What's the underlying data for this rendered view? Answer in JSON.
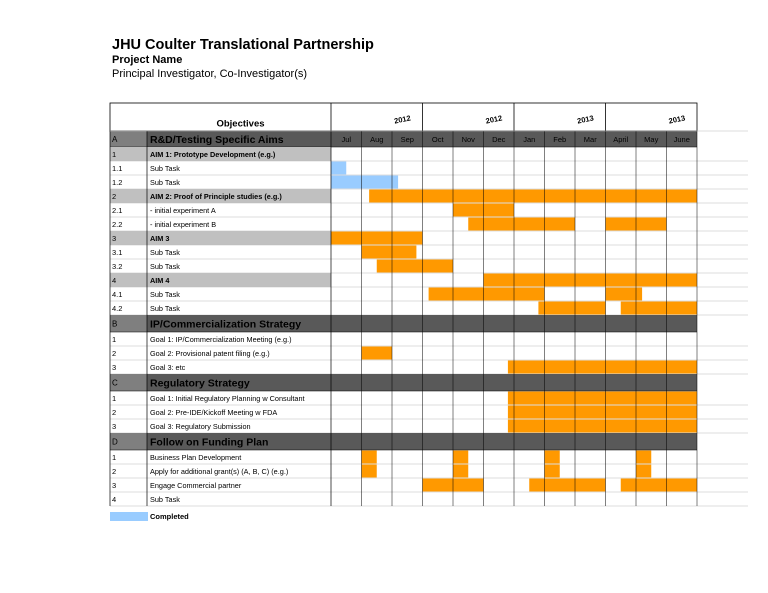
{
  "header": {
    "title": "JHU Coulter Translational Partnership",
    "project": "Project Name",
    "investigators": "Principal Investigator, Co-Investigator(s)"
  },
  "table": {
    "objectives_label": "Objectives",
    "years": [
      "2012",
      "2012",
      "2013",
      "2013"
    ],
    "months": [
      "Jul",
      "Aug",
      "Sep",
      "Oct",
      "Nov",
      "Dec",
      "Jan",
      "Feb",
      "Mar",
      "April",
      "May",
      "June"
    ],
    "rows": [
      {
        "id": "A",
        "label": "R&D/Testing Specific Aims",
        "kind": "section"
      },
      {
        "id": "1",
        "label": "AIM 1: Prototype Development (e.g.)",
        "kind": "aim"
      },
      {
        "id": "1.1",
        "label": "Sub Task",
        "kind": "task",
        "completed_bars": [
          [
            0,
            0.5
          ]
        ]
      },
      {
        "id": "1.2",
        "label": "Sub Task",
        "kind": "task",
        "completed_bars": [
          [
            0,
            2.2
          ]
        ]
      },
      {
        "id": "2",
        "label": "AIM 2: Proof of Principle studies (e.g.)",
        "kind": "aim",
        "bars": [
          [
            1.25,
            12
          ]
        ]
      },
      {
        "id": "2.1",
        "label": " - initial experiment A",
        "kind": "task",
        "bars": [
          [
            4,
            6
          ]
        ]
      },
      {
        "id": "2.2",
        "label": " - initial experiment B",
        "kind": "task",
        "bars": [
          [
            4.5,
            8
          ],
          [
            9,
            11
          ]
        ]
      },
      {
        "id": "3",
        "label": "AIM 3",
        "kind": "aim",
        "bars": [
          [
            0,
            3
          ]
        ]
      },
      {
        "id": "3.1",
        "label": "Sub Task",
        "kind": "task",
        "bars": [
          [
            1,
            2.8
          ]
        ]
      },
      {
        "id": "3.2",
        "label": "Sub Task",
        "kind": "task",
        "bars": [
          [
            1.5,
            4
          ]
        ]
      },
      {
        "id": "4",
        "label": "AIM 4",
        "kind": "aim",
        "bars": [
          [
            5,
            12
          ]
        ]
      },
      {
        "id": "4.1",
        "label": "Sub Task",
        "kind": "task",
        "bars": [
          [
            3.2,
            7
          ],
          [
            9,
            10.2
          ]
        ]
      },
      {
        "id": "4.2",
        "label": "Sub Task",
        "kind": "task",
        "bars": [
          [
            6.8,
            9
          ],
          [
            9.5,
            12
          ]
        ]
      },
      {
        "id": "B",
        "label": "IP/Commercialization Strategy",
        "kind": "section"
      },
      {
        "id": "1",
        "label": "Goal 1: IP/Commercialization Meeting (e.g.)",
        "kind": "task"
      },
      {
        "id": "2",
        "label": "Goal 2: Provisional patent filing (e.g.)",
        "kind": "task",
        "bars": [
          [
            1,
            2
          ]
        ]
      },
      {
        "id": "3",
        "label": "Goal 3: etc",
        "kind": "task",
        "bars": [
          [
            5.8,
            12
          ]
        ]
      },
      {
        "id": "C",
        "label": "Regulatory Strategy",
        "kind": "section"
      },
      {
        "id": "1",
        "label": "Goal 1: Initial Regulatory Planning w Consultant",
        "kind": "task",
        "bars": [
          [
            5.8,
            12
          ]
        ]
      },
      {
        "id": "2",
        "label": "Goal 2: Pre-IDE/Kickoff Meeting w FDA",
        "kind": "task",
        "bars": [
          [
            5.8,
            12
          ]
        ]
      },
      {
        "id": "3",
        "label": "Goal 3: Regulatory Submission",
        "kind": "task",
        "bars": [
          [
            5.8,
            12
          ]
        ]
      },
      {
        "id": "D",
        "label": "Follow on Funding Plan",
        "kind": "section"
      },
      {
        "id": "1",
        "label": "Business Plan Development",
        "kind": "task",
        "bars": [
          [
            1,
            1.5
          ],
          [
            4,
            4.5
          ],
          [
            7,
            7.5
          ],
          [
            10,
            10.5
          ]
        ]
      },
      {
        "id": "2",
        "label": "Apply for additional grant(s) (A, B, C) (e.g.)",
        "kind": "task",
        "bars": [
          [
            1,
            1.5
          ],
          [
            4,
            4.5
          ],
          [
            7,
            7.5
          ],
          [
            10,
            10.5
          ]
        ]
      },
      {
        "id": "3",
        "label": "Engage Commercial partner",
        "kind": "task",
        "bars": [
          [
            3,
            5
          ],
          [
            6.5,
            9
          ],
          [
            9.5,
            12
          ]
        ]
      },
      {
        "id": "4",
        "label": "Sub Task",
        "kind": "task"
      }
    ]
  },
  "legend": {
    "label": "Completed"
  }
}
